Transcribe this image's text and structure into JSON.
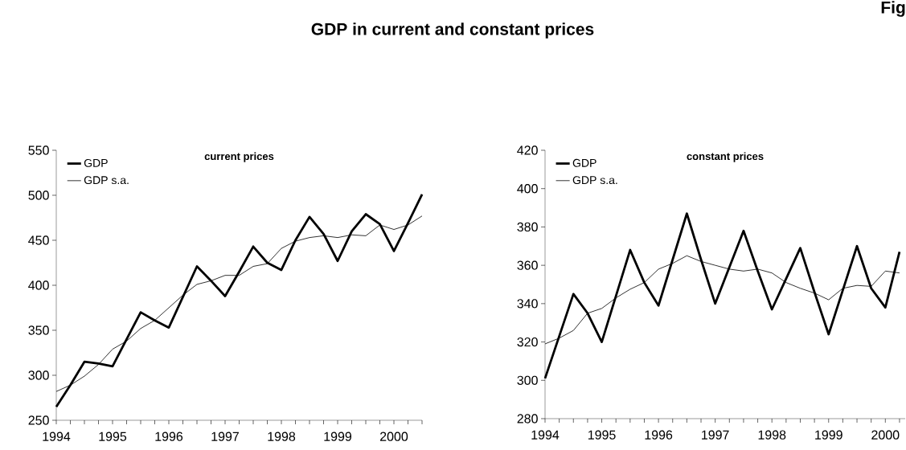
{
  "chart_data": [
    {
      "type": "line",
      "title": "current prices",
      "annotations": [
        "GDP in current and constant prices",
        "Fig"
      ],
      "x": [
        1994,
        1994.25,
        1994.5,
        1994.75,
        1995,
        1995.25,
        1995.5,
        1995.75,
        1996,
        1996.25,
        1996.5,
        1996.75,
        1997,
        1997.25,
        1997.5,
        1997.75,
        1998,
        1998.25,
        1998.5,
        1998.75,
        1999,
        1999.25,
        1999.5,
        1999.75,
        2000,
        2000.25,
        2000.5
      ],
      "series": [
        {
          "name": "GDP",
          "color": "#000000",
          "values": [
            265,
            289,
            315,
            313,
            310,
            340,
            370,
            361,
            353,
            387,
            421,
            405,
            388,
            415,
            443,
            425,
            417,
            450,
            476,
            457,
            427,
            460,
            479,
            468,
            438,
            469,
            501
          ]
        },
        {
          "name": "GDP s.a.",
          "color": "#000000",
          "values": [
            282,
            289,
            299,
            312,
            329,
            338,
            352,
            361,
            375,
            389,
            401,
            405,
            411,
            411,
            421,
            424,
            441,
            449,
            453,
            455,
            453,
            456,
            455,
            467,
            462,
            467,
            477
          ]
        }
      ],
      "xlim": [
        1994,
        2000.5
      ],
      "ylim": [
        250,
        550
      ],
      "xticks": [
        1994,
        {
          "value": 1994.25,
          "label": null
        },
        {
          "value": 1994.5,
          "label": null
        },
        {
          "value": 1994.75,
          "label": null
        },
        1995,
        {
          "value": 1995.25,
          "label": null
        },
        {
          "value": 1995.5,
          "label": null
        },
        {
          "value": 1995.75,
          "label": null
        },
        1996,
        {
          "value": 1996.25,
          "label": null
        },
        {
          "value": 1996.5,
          "label": null
        },
        {
          "value": 1996.75,
          "label": null
        },
        1997,
        {
          "value": 1997.25,
          "label": null
        },
        {
          "value": 1997.5,
          "label": null
        },
        {
          "value": 1997.75,
          "label": null
        },
        1998,
        {
          "value": 1998.25,
          "label": null
        },
        {
          "value": 1998.5,
          "label": null
        },
        {
          "value": 1998.75,
          "label": null
        },
        1999,
        {
          "value": 1999.25,
          "label": null
        },
        {
          "value": 1999.5,
          "label": null
        },
        {
          "value": 1999.75,
          "label": null
        },
        2000,
        {
          "value": 2000.25,
          "label": null
        },
        {
          "value": 2000.5,
          "label": null
        }
      ],
      "yticks": [
        250,
        300,
        350,
        400,
        450,
        500,
        550
      ],
      "legend": "top left",
      "line_style": "solid"
    },
    {
      "type": "line",
      "title": "constant prices",
      "x": [
        1994,
        1994.25,
        1994.5,
        1994.75,
        1995,
        1995.25,
        1995.5,
        1995.75,
        1996,
        1996.25,
        1996.5,
        1996.75,
        1997,
        1997.25,
        1997.5,
        1997.75,
        1998,
        1998.25,
        1998.5,
        1998.75,
        1999,
        1999.25,
        1999.5,
        1999.75,
        2000,
        2000.25
      ],
      "series": [
        {
          "name": "GDP",
          "color": "#000000",
          "values": [
            301,
            323,
            345,
            335,
            320,
            344,
            368,
            351,
            339,
            363,
            387,
            363,
            340,
            359,
            378,
            357,
            337,
            353,
            369,
            346,
            324,
            347,
            370,
            348,
            338,
            367
          ]
        },
        {
          "name": "GDP s.a.",
          "color": "#000000",
          "values": [
            319,
            322,
            326,
            335,
            337.5,
            343,
            347.5,
            351,
            358,
            361,
            365,
            362,
            360,
            358,
            357,
            358,
            356,
            351,
            348,
            345.5,
            342,
            348,
            349.5,
            349,
            357,
            356
          ]
        }
      ],
      "xlim": [
        1994,
        2000.35
      ],
      "ylim": [
        280,
        420
      ],
      "xticks": [
        1994,
        {
          "value": 1994.25,
          "label": null
        },
        {
          "value": 1994.5,
          "label": null
        },
        {
          "value": 1994.75,
          "label": null
        },
        1995,
        {
          "value": 1995.25,
          "label": null
        },
        {
          "value": 1995.5,
          "label": null
        },
        {
          "value": 1995.75,
          "label": null
        },
        1996,
        {
          "value": 1996.25,
          "label": null
        },
        {
          "value": 1996.5,
          "label": null
        },
        {
          "value": 1996.75,
          "label": null
        },
        1997,
        {
          "value": 1997.25,
          "label": null
        },
        {
          "value": 1997.5,
          "label": null
        },
        {
          "value": 1997.75,
          "label": null
        },
        1998,
        {
          "value": 1998.25,
          "label": null
        },
        {
          "value": 1998.5,
          "label": null
        },
        {
          "value": 1998.75,
          "label": null
        },
        1999,
        {
          "value": 1999.25,
          "label": null
        },
        {
          "value": 1999.5,
          "label": null
        },
        {
          "value": 1999.75,
          "label": null
        },
        2000,
        {
          "value": 2000.25,
          "label": null
        }
      ],
      "yticks": [
        280,
        300,
        320,
        340,
        360,
        380,
        400,
        420
      ],
      "legend": "top left",
      "line_style": "solid"
    }
  ]
}
